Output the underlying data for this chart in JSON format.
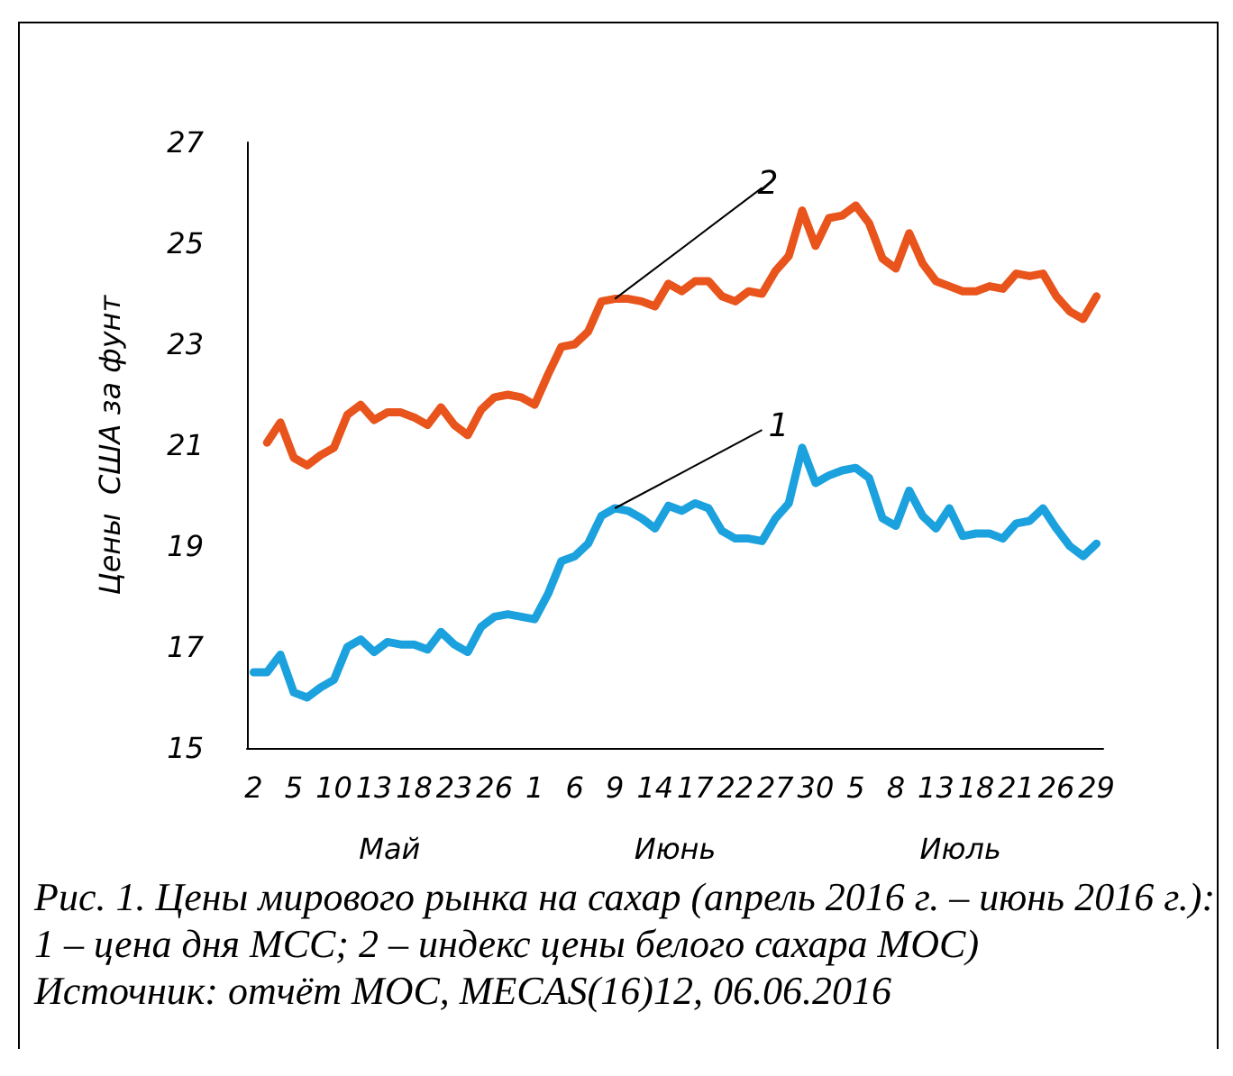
{
  "chart_data": {
    "type": "line",
    "ylabel": "Цены  США за фунт",
    "categories": [
      "2",
      null,
      null,
      "5",
      null,
      null,
      "10",
      null,
      null,
      "13",
      null,
      null,
      "18",
      null,
      null,
      "23",
      null,
      null,
      "26",
      null,
      null,
      "1",
      null,
      null,
      "6",
      null,
      null,
      "9",
      null,
      null,
      "14",
      null,
      null,
      "17",
      null,
      null,
      "22",
      null,
      null,
      "27",
      null,
      null,
      "30",
      null,
      null,
      "5",
      null,
      null,
      "8",
      null,
      null,
      "13",
      null,
      null,
      "18",
      null,
      null,
      "21",
      null,
      null,
      "26",
      null,
      null,
      "29"
    ],
    "series": [
      {
        "name": "1",
        "color": "#1ba1dd",
        "values": [
          16.5,
          16.5,
          16.85,
          16.1,
          16.0,
          16.2,
          16.35,
          17.0,
          17.15,
          16.9,
          17.1,
          17.05,
          17.05,
          16.95,
          17.3,
          17.05,
          16.9,
          17.4,
          17.6,
          17.65,
          17.6,
          17.55,
          18.05,
          18.7,
          18.8,
          19.05,
          19.6,
          19.75,
          19.7,
          19.55,
          19.35,
          19.8,
          19.7,
          19.85,
          19.75,
          19.3,
          19.15,
          19.15,
          19.1,
          19.55,
          19.85,
          20.95,
          20.25,
          20.4,
          20.5,
          20.55,
          20.35,
          19.55,
          19.4,
          20.1,
          19.6,
          19.35,
          19.75,
          19.2,
          19.25,
          19.25,
          19.15,
          19.45,
          19.5,
          19.75,
          19.35,
          19.0,
          18.8,
          19.05
        ]
      },
      {
        "name": "2",
        "color": "#e8541c",
        "values": [
          null,
          21.05,
          21.45,
          20.75,
          20.6,
          20.8,
          20.95,
          21.6,
          21.8,
          21.5,
          21.65,
          21.65,
          21.55,
          21.4,
          21.75,
          21.4,
          21.2,
          21.7,
          21.95,
          22.0,
          21.95,
          21.8,
          22.4,
          22.95,
          23.0,
          23.25,
          23.85,
          23.9,
          23.9,
          23.85,
          23.75,
          24.2,
          24.05,
          24.25,
          24.25,
          23.95,
          23.85,
          24.05,
          24.0,
          24.45,
          24.75,
          25.65,
          24.95,
          25.5,
          25.55,
          25.75,
          25.4,
          24.7,
          24.5,
          25.2,
          24.6,
          24.25,
          24.15,
          24.05,
          24.05,
          24.15,
          24.1,
          24.4,
          24.35,
          24.4,
          23.95,
          23.65,
          23.5,
          23.95
        ]
      }
    ],
    "ylim": [
      15,
      27
    ],
    "yticks": [
      15,
      17,
      19,
      21,
      23,
      25,
      27
    ],
    "grid": false,
    "legend": false,
    "marker": "none",
    "line_style": "solid",
    "annotations": [
      {
        "text": "Май"
      },
      {
        "text": "Июнь"
      },
      {
        "text": "Июль"
      },
      "Рис. 1. Цены мирового рынка на сахар (апрель 2016 г. – июнь 2016 г.): 1 – цена дня МСС; 2 – индекс цены белого сахара МОС)",
      "Источник: отчёт МОС, MECAS(16)12, 06.06.2016"
    ]
  }
}
